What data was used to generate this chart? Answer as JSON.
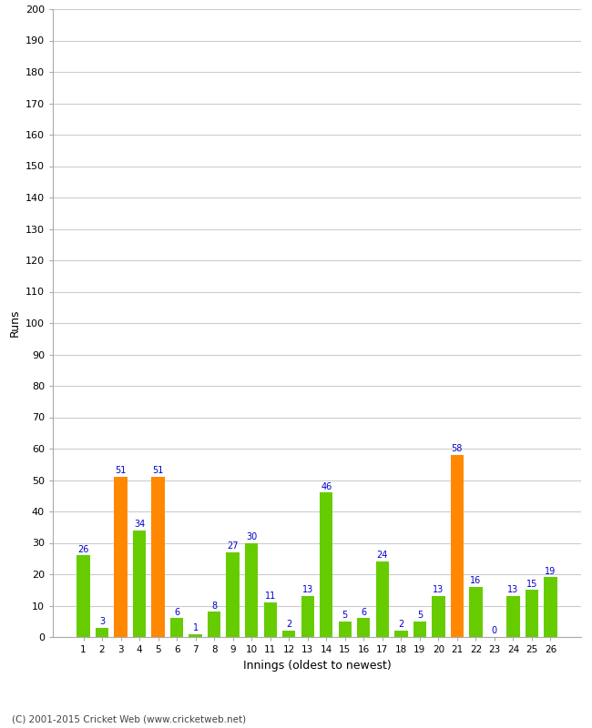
{
  "xlabel": "Innings (oldest to newest)",
  "ylabel": "Runs",
  "categories": [
    "1",
    "2",
    "3",
    "4",
    "5",
    "6",
    "7",
    "8",
    "9",
    "10",
    "11",
    "12",
    "13",
    "14",
    "15",
    "16",
    "17",
    "18",
    "19",
    "20",
    "21",
    "22",
    "23",
    "24",
    "25",
    "26"
  ],
  "values": [
    26,
    3,
    51,
    34,
    51,
    6,
    1,
    8,
    27,
    30,
    11,
    2,
    13,
    46,
    5,
    6,
    24,
    2,
    5,
    13,
    58,
    16,
    0,
    13,
    15,
    19
  ],
  "colors": [
    "#66cc00",
    "#66cc00",
    "#ff8800",
    "#66cc00",
    "#ff8800",
    "#66cc00",
    "#66cc00",
    "#66cc00",
    "#66cc00",
    "#66cc00",
    "#66cc00",
    "#66cc00",
    "#66cc00",
    "#66cc00",
    "#66cc00",
    "#66cc00",
    "#66cc00",
    "#66cc00",
    "#66cc00",
    "#66cc00",
    "#ff8800",
    "#66cc00",
    "#66cc00",
    "#66cc00",
    "#66cc00",
    "#66cc00"
  ],
  "ylim": [
    0,
    200
  ],
  "yticks": [
    0,
    10,
    20,
    30,
    40,
    50,
    60,
    70,
    80,
    90,
    100,
    110,
    120,
    130,
    140,
    150,
    160,
    170,
    180,
    190,
    200
  ],
  "label_color": "#0000cc",
  "background_color": "#ffffff",
  "grid_color": "#cccccc",
  "footer": "(C) 2001-2015 Cricket Web (www.cricketweb.net)"
}
